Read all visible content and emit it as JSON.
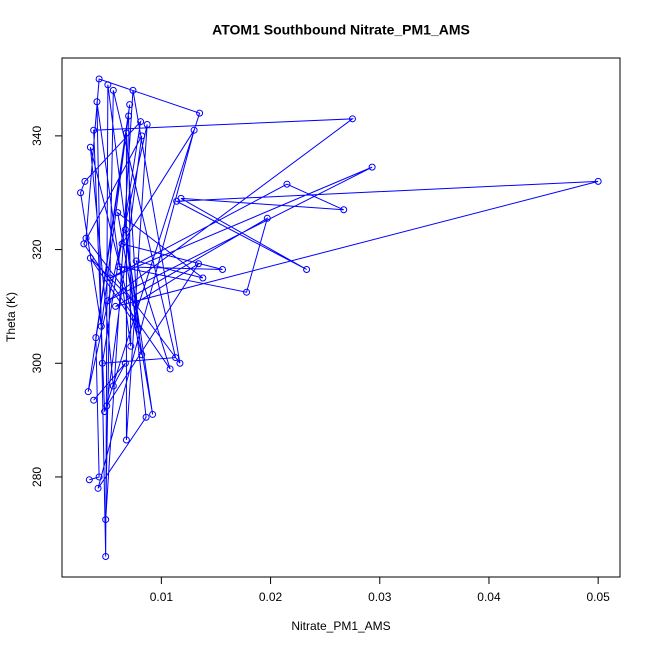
{
  "chart_data": {
    "type": "line",
    "title": "ATOM1 Southbound Nitrate_PM1_AMS",
    "x_label": "Nitrate_PM1_AMS",
    "y_label": "Theta (K)",
    "color": "#0000ff",
    "markers": "open-circle",
    "x": [
      0.0034,
      0.0043,
      0.004,
      0.0071,
      0.0045,
      0.0026,
      0.003,
      0.0081,
      0.0046,
      0.0113,
      0.0056,
      0.0049,
      0.0074,
      0.0117,
      0.0031,
      0.0043,
      0.0135,
      0.0048,
      0.0038,
      0.0275,
      0.0051,
      0.0293,
      0.0053,
      0.0215,
      0.0267,
      0.0118,
      0.0233,
      0.0114,
      0.05,
      0.0058,
      0.0197,
      0.0178,
      0.0061,
      0.0156,
      0.0064,
      0.013,
      0.0042,
      0.0086,
      0.0067,
      0.0092,
      0.006,
      0.0138,
      0.0077,
      0.0108,
      0.0029,
      0.0082,
      0.005,
      0.0134,
      0.0076,
      0.0035,
      0.0079,
      0.0068,
      0.0068,
      0.0087,
      0.0033,
      0.007,
      0.0072,
      0.0041,
      0.0049,
      0.0051,
      0.0082,
      0.0035,
      0.0056,
      0.0067,
      0.0038
    ],
    "values": [
      279.5,
      280,
      304.5,
      345.5,
      306.5,
      330,
      332,
      342.5,
      300,
      301,
      348,
      272.5,
      348,
      300,
      322,
      350,
      344,
      291.5,
      341,
      343,
      311,
      334.5,
      315,
      331.5,
      327,
      329,
      316.5,
      328.5,
      332,
      310,
      325.5,
      312.5,
      317,
      316.5,
      321,
      341,
      278,
      290.5,
      323.5,
      291,
      326.5,
      315,
      318,
      299,
      321,
      340,
      292.5,
      317.5,
      310.5,
      318.5,
      306,
      340.5,
      286.5,
      342,
      295,
      343.5,
      303,
      346,
      266,
      349,
      301.5,
      338,
      296,
      300,
      293.5
    ],
    "xlim": [
      0.0009,
      0.052
    ],
    "ylim": [
      262.4,
      353.7
    ],
    "xticks": [
      0.01,
      0.02,
      0.03,
      0.04,
      0.05
    ],
    "yticks": [
      280,
      300,
      320,
      340
    ]
  }
}
